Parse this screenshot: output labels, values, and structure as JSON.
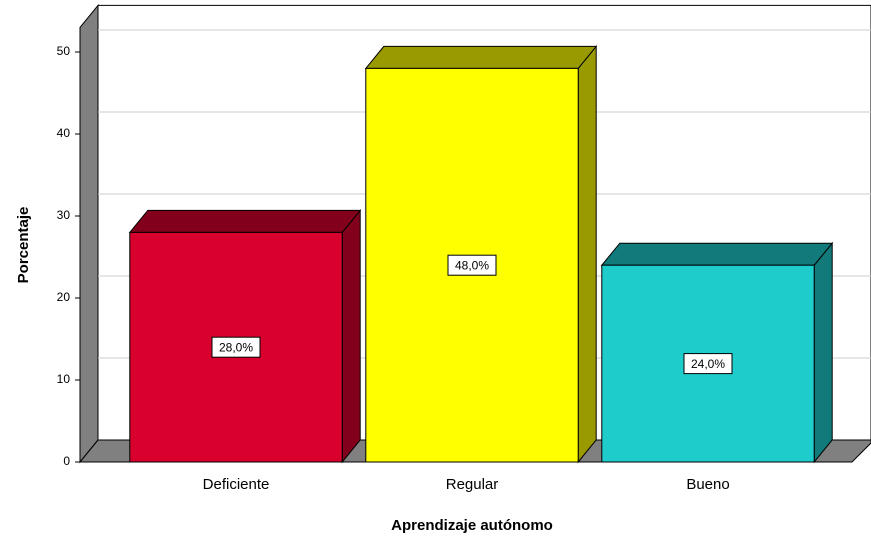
{
  "chart_data": {
    "type": "bar3d",
    "x_label": "Aprendizaje autónomo",
    "y_label": "Porcentaje",
    "categories": [
      "Deficiente",
      "Regular",
      "Bueno"
    ],
    "values": [
      28,
      48,
      24
    ],
    "value_labels": [
      "28,0%",
      "48,0%",
      "24,0%"
    ],
    "colors": [
      "#d9002e",
      "#ffff00",
      "#1fcccc"
    ],
    "ylim": [
      0,
      53
    ],
    "yticks": [
      0,
      10,
      20,
      30,
      40,
      50
    ],
    "grid": true
  }
}
